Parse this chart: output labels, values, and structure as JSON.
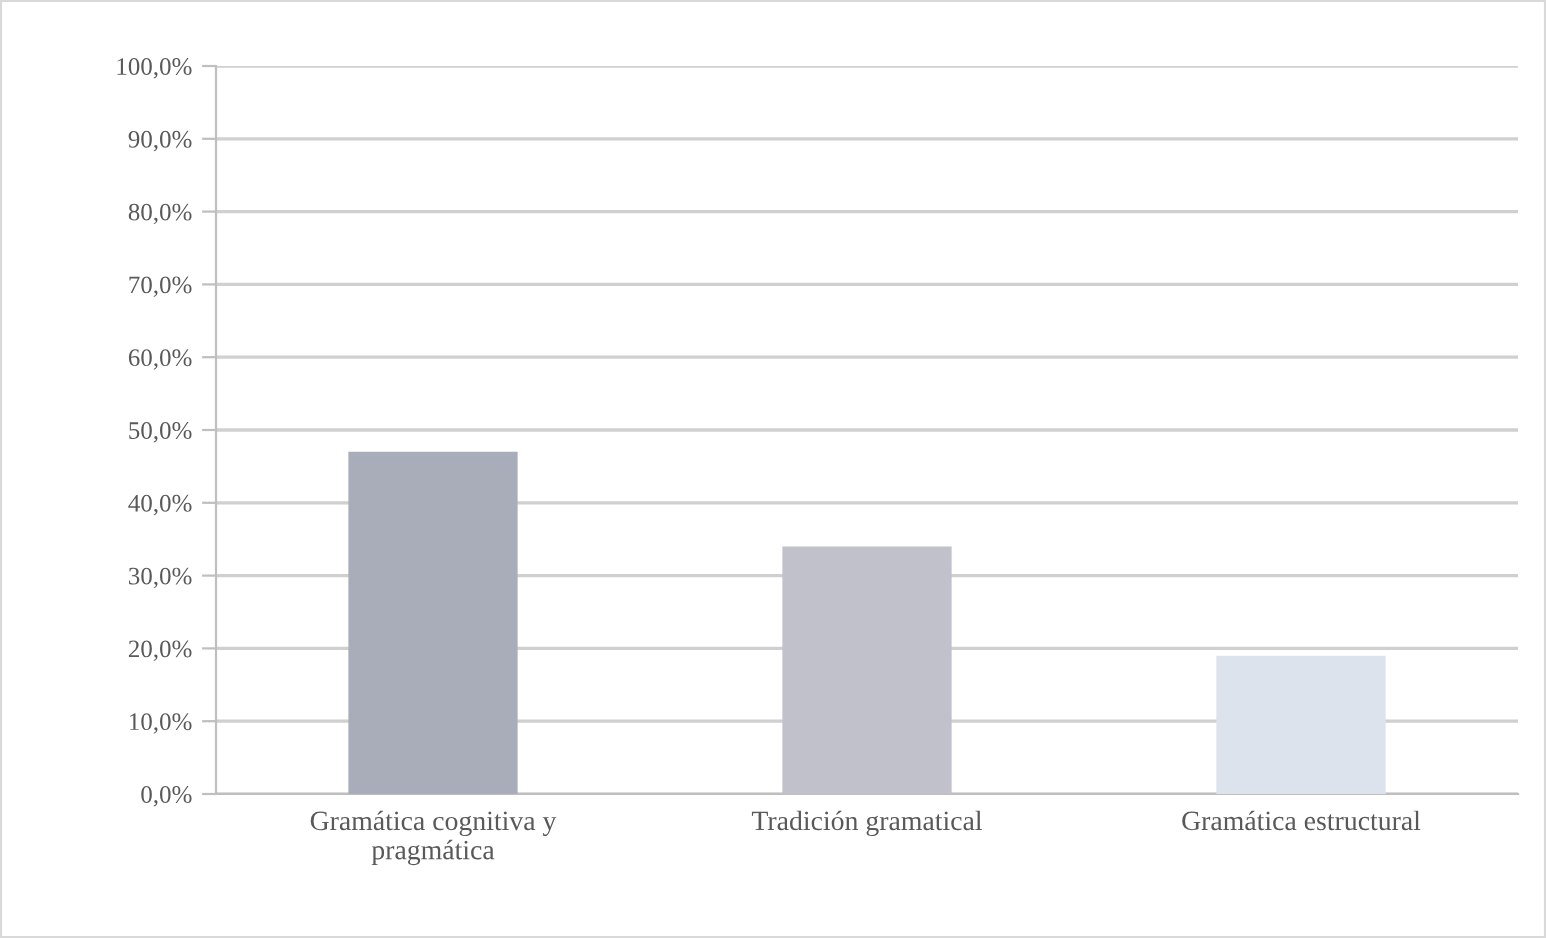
{
  "chart_data": {
    "type": "bar",
    "categories": [
      "Gramática cognitiva y\npragmática",
      "Tradición gramatical",
      "Gramática estructural"
    ],
    "values": [
      47.0,
      34.0,
      19.0
    ],
    "colors": [
      "#a9adb9",
      "#c0c1cb",
      "#dde3ec"
    ],
    "ylim": [
      0,
      100
    ],
    "yticks": [
      {
        "value": 0,
        "label": "0,0%"
      },
      {
        "value": 10,
        "label": "10,0%"
      },
      {
        "value": 20,
        "label": "20,0%"
      },
      {
        "value": 30,
        "label": "30,0%"
      },
      {
        "value": 40,
        "label": "40,0%"
      },
      {
        "value": 50,
        "label": "50,0%"
      },
      {
        "value": 60,
        "label": "60,0%"
      },
      {
        "value": 70,
        "label": "70,0%"
      },
      {
        "value": 80,
        "label": "80,0%"
      },
      {
        "value": 90,
        "label": "90,0%"
      },
      {
        "value": 100,
        "label": "100,0%"
      }
    ],
    "grid": "y",
    "legend": false
  }
}
